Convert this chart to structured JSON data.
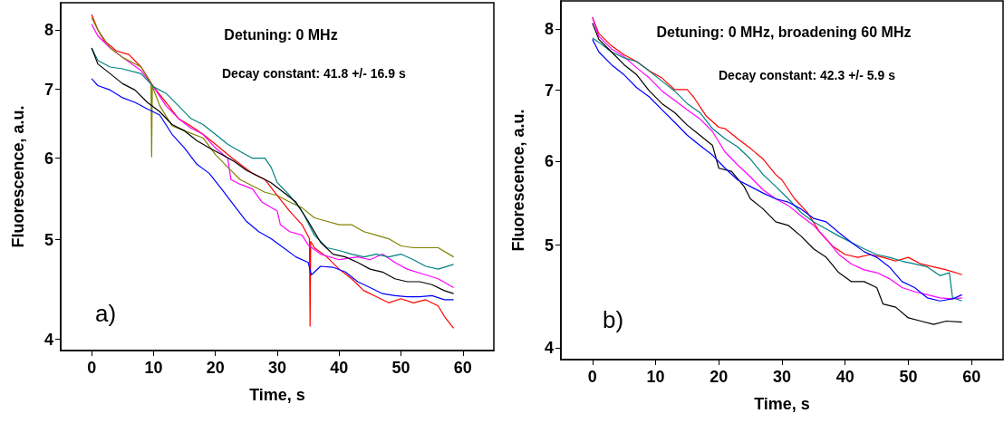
{
  "chart_data": [
    {
      "type": "line",
      "title": "Detuning: 0 MHz",
      "xlabel": "Time, s",
      "ylabel": "Fluorescence, a.u.",
      "annotations": [
        "Decay constant: 41.8 +/- 16.9 s",
        "a)"
      ],
      "log": true,
      "marker": "none",
      "xlim": [
        -5,
        65
      ],
      "xticks": [
        0,
        10,
        20,
        30,
        40,
        50,
        60
      ],
      "ylim": [
        3.9,
        8.5
      ],
      "yticks": [
        4,
        5,
        6,
        7,
        8
      ],
      "series": [
        {
          "color": "#ff0000",
          "x": [
            0,
            1,
            2,
            4,
            6,
            8,
            10,
            12,
            14,
            16,
            18,
            20,
            22,
            24,
            26,
            28,
            30,
            32,
            34,
            35.2,
            35.3,
            35.4,
            36,
            38,
            40,
            42,
            44,
            46,
            48,
            50,
            52,
            54,
            56,
            57,
            58.5
          ],
          "values": [
            8.28,
            8.0,
            7.81,
            7.63,
            7.57,
            7.36,
            7.04,
            6.8,
            6.56,
            6.45,
            6.33,
            6.19,
            6.05,
            5.92,
            5.8,
            5.72,
            5.52,
            5.33,
            5.17,
            5.01,
            4.12,
            4.98,
            4.91,
            4.81,
            4.68,
            4.58,
            4.46,
            4.4,
            4.34,
            4.38,
            4.34,
            4.37,
            4.31,
            4.21,
            4.1
          ]
        },
        {
          "color": "#ff00ff",
          "x": [
            0,
            1,
            3,
            5,
            8,
            10,
            12,
            14,
            16,
            18,
            20,
            22,
            22.5,
            24,
            26,
            27.5,
            30,
            30.5,
            32,
            34,
            35,
            37,
            40,
            43,
            45,
            47,
            49,
            51,
            54,
            56,
            58.5
          ],
          "values": [
            8.1,
            7.89,
            7.68,
            7.52,
            7.3,
            7.04,
            6.75,
            6.56,
            6.42,
            6.33,
            6.14,
            6.0,
            5.72,
            5.66,
            5.6,
            5.44,
            5.33,
            5.17,
            5.09,
            5.05,
            4.94,
            4.84,
            4.78,
            4.81,
            4.78,
            4.84,
            4.75,
            4.68,
            4.62,
            4.58,
            4.49
          ]
        },
        {
          "color": "#808000",
          "x": [
            0,
            1,
            3,
            5,
            8,
            9.6,
            9.7,
            9.8,
            11,
            13,
            15,
            18,
            20,
            22,
            24,
            26,
            28,
            30,
            32,
            34,
            36,
            38,
            40,
            42,
            44,
            46,
            48,
            50,
            52,
            54,
            56,
            58.5
          ],
          "values": [
            8.22,
            8.0,
            7.68,
            7.52,
            7.36,
            7.09,
            6.02,
            7.05,
            6.75,
            6.45,
            6.38,
            6.28,
            6.05,
            5.88,
            5.72,
            5.64,
            5.56,
            5.52,
            5.44,
            5.37,
            5.25,
            5.21,
            5.17,
            5.17,
            5.09,
            5.05,
            5.01,
            4.93,
            4.91,
            4.91,
            4.91,
            4.81
          ]
        },
        {
          "color": "#008080",
          "x": [
            0,
            1,
            3,
            5,
            8,
            10,
            12,
            14,
            16,
            18,
            20,
            22,
            24,
            26,
            28,
            29,
            30,
            32,
            34,
            36,
            38,
            40,
            42,
            44,
            46,
            48,
            50,
            52,
            54,
            56,
            58.5
          ],
          "values": [
            7.68,
            7.47,
            7.36,
            7.33,
            7.25,
            7.04,
            6.94,
            6.75,
            6.56,
            6.47,
            6.33,
            6.19,
            6.09,
            6.0,
            6.0,
            5.88,
            5.68,
            5.52,
            5.33,
            5.05,
            4.91,
            4.88,
            4.84,
            4.81,
            4.84,
            4.81,
            4.84,
            4.78,
            4.71,
            4.68,
            4.73
          ]
        },
        {
          "color": "#000000",
          "x": [
            0,
            1,
            3,
            5,
            7,
            9,
            11,
            13,
            15,
            17,
            19,
            21,
            23,
            25,
            27,
            29,
            31,
            33,
            35,
            37,
            39,
            41,
            43,
            45,
            47,
            49,
            51,
            53,
            55,
            57,
            58.5
          ],
          "values": [
            7.68,
            7.41,
            7.25,
            7.09,
            6.99,
            6.8,
            6.66,
            6.47,
            6.38,
            6.24,
            6.14,
            6.05,
            5.96,
            5.84,
            5.76,
            5.68,
            5.56,
            5.44,
            5.21,
            4.97,
            4.84,
            4.81,
            4.75,
            4.68,
            4.65,
            4.58,
            4.55,
            4.55,
            4.52,
            4.46,
            4.43
          ]
        },
        {
          "color": "#0000ff",
          "x": [
            0,
            1,
            3,
            5,
            7,
            9,
            11,
            13,
            15,
            17,
            19,
            21,
            23,
            25,
            27,
            29,
            31,
            33,
            35,
            35.5,
            37,
            39,
            41,
            43,
            45,
            47,
            49,
            51,
            53,
            55,
            57,
            58.5
          ],
          "values": [
            7.17,
            7.06,
            6.99,
            6.87,
            6.8,
            6.7,
            6.61,
            6.33,
            6.14,
            5.92,
            5.8,
            5.6,
            5.4,
            5.21,
            5.09,
            5.01,
            4.91,
            4.81,
            4.75,
            4.62,
            4.71,
            4.7,
            4.65,
            4.55,
            4.49,
            4.43,
            4.41,
            4.4,
            4.4,
            4.41,
            4.37,
            4.37
          ]
        }
      ]
    },
    {
      "type": "line",
      "title": "Detuning: 0 MHz, broadening 60 MHz",
      "xlabel": "Time, s",
      "ylabel": "Fluorescence, a.u.",
      "annotations": [
        "Decay constant: 42.3 +/- 5.9 s",
        "b)"
      ],
      "log": true,
      "marker": "none",
      "xlim": [
        -5,
        65
      ],
      "xticks": [
        0,
        10,
        20,
        30,
        40,
        50,
        60
      ],
      "ylim": [
        3.9,
        8.5
      ],
      "yticks": [
        4,
        5,
        6,
        7,
        8
      ],
      "series": [
        {
          "color": "#ff0000",
          "x": [
            0,
            1,
            3,
            5,
            7,
            9,
            11,
            13,
            15,
            16,
            18,
            20,
            21,
            23,
            25,
            27,
            29,
            30,
            32,
            34,
            36,
            38,
            40,
            42,
            44,
            46,
            48,
            50,
            52,
            54,
            56,
            58.5
          ],
          "values": [
            8.2,
            7.92,
            7.71,
            7.56,
            7.45,
            7.3,
            7.19,
            7.01,
            7.01,
            6.9,
            6.62,
            6.46,
            6.44,
            6.3,
            6.17,
            6.03,
            5.83,
            5.76,
            5.53,
            5.37,
            5.14,
            4.99,
            4.9,
            4.87,
            4.9,
            4.87,
            4.83,
            4.87,
            4.8,
            4.77,
            4.74,
            4.69
          ]
        },
        {
          "color": "#ff00ff",
          "x": [
            0,
            1,
            3,
            5,
            7,
            9,
            11,
            13,
            15,
            17,
            19,
            21,
            23,
            25,
            27,
            29,
            31,
            33,
            35,
            37,
            39,
            41,
            43,
            45,
            47,
            49,
            51,
            53,
            55,
            57,
            58.5
          ],
          "values": [
            8.2,
            7.87,
            7.66,
            7.53,
            7.35,
            7.19,
            6.99,
            6.85,
            6.71,
            6.58,
            6.4,
            6.12,
            5.95,
            5.8,
            5.64,
            5.53,
            5.45,
            5.33,
            5.22,
            5.07,
            4.9,
            4.8,
            4.74,
            4.71,
            4.65,
            4.56,
            4.52,
            4.49,
            4.46,
            4.45,
            4.46
          ]
        },
        {
          "color": "#008080",
          "x": [
            0,
            1,
            3,
            5,
            7,
            9,
            11,
            13,
            15,
            17,
            19,
            21,
            23,
            25,
            27,
            29,
            31,
            33,
            35,
            37,
            39,
            41,
            43,
            45,
            47,
            49,
            51,
            53,
            55,
            56.5,
            57,
            58.5
          ],
          "values": [
            7.84,
            7.77,
            7.61,
            7.51,
            7.45,
            7.3,
            7.14,
            6.99,
            6.8,
            6.67,
            6.44,
            6.3,
            6.19,
            6.03,
            5.83,
            5.68,
            5.53,
            5.37,
            5.26,
            5.18,
            5.1,
            5.03,
            4.96,
            4.9,
            4.87,
            4.83,
            4.8,
            4.77,
            4.68,
            4.71,
            4.46,
            4.43
          ]
        },
        {
          "color": "#000000",
          "x": [
            0,
            1,
            3,
            5,
            7,
            9,
            11,
            13,
            15,
            17,
            19,
            20,
            22,
            24,
            25,
            27,
            29,
            31,
            33,
            35,
            37,
            39,
            41,
            43,
            45,
            46,
            48,
            50,
            52,
            54,
            56,
            58.5
          ],
          "values": [
            8.1,
            7.82,
            7.61,
            7.4,
            7.24,
            6.99,
            6.8,
            6.67,
            6.49,
            6.35,
            6.21,
            5.91,
            5.87,
            5.68,
            5.53,
            5.41,
            5.26,
            5.22,
            5.1,
            4.96,
            4.87,
            4.71,
            4.62,
            4.62,
            4.56,
            4.4,
            4.37,
            4.27,
            4.24,
            4.21,
            4.24,
            4.23
          ]
        },
        {
          "color": "#0000ff",
          "x": [
            0,
            1,
            3,
            5,
            7,
            9,
            11,
            13,
            15,
            17,
            19,
            21,
            23,
            25,
            27,
            29,
            31,
            33,
            35,
            37,
            39,
            41,
            43,
            45,
            47,
            49,
            51,
            53,
            55,
            57,
            58.5
          ],
          "values": [
            7.82,
            7.61,
            7.4,
            7.24,
            7.04,
            6.9,
            6.71,
            6.53,
            6.35,
            6.21,
            6.08,
            5.91,
            5.76,
            5.68,
            5.6,
            5.53,
            5.49,
            5.41,
            5.3,
            5.26,
            5.14,
            5.03,
            4.93,
            4.87,
            4.77,
            4.62,
            4.56,
            4.46,
            4.43,
            4.45,
            4.49
          ]
        }
      ]
    }
  ]
}
